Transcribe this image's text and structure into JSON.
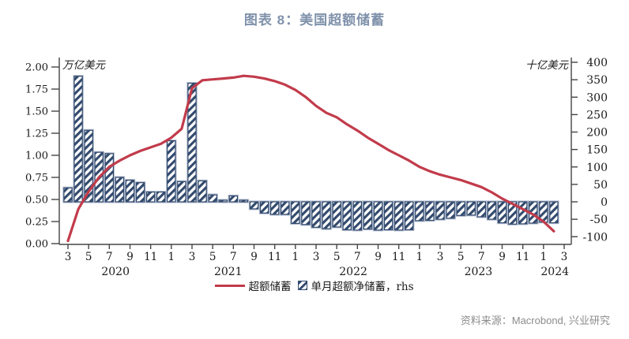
{
  "source": {
    "text": "资料来源：Macrobond, 兴业研究"
  },
  "colors": {
    "title": "#8092ab",
    "line": "#c23b4b",
    "bar_stripe": "#324a6d",
    "bar_edge_light": "#b3bdd0",
    "axis": "#454545",
    "tick_text": "#1a1a1a",
    "source_text": "#8c8c8c"
  },
  "chart_data": {
    "type": "combo-bar-line",
    "title": "图表 8：美国超额储蓄",
    "left_axis": {
      "unit": "万亿美元",
      "min": 0,
      "max": 2,
      "ticks": [
        {
          "v": 0.0,
          "label": "0.00"
        },
        {
          "v": 0.25,
          "label": "0.25"
        },
        {
          "v": 0.5,
          "label": "0.50"
        },
        {
          "v": 0.75,
          "label": "0.75"
        },
        {
          "v": 1.0,
          "label": "1.00"
        },
        {
          "v": 1.25,
          "label": "1.25"
        },
        {
          "v": 1.5,
          "label": "1.50"
        },
        {
          "v": 1.75,
          "label": "1.75"
        },
        {
          "v": 2.0,
          "label": "2.00"
        }
      ]
    },
    "right_axis": {
      "unit": "十亿美元",
      "min": -100,
      "max": 400,
      "ticks": [
        {
          "v": -100,
          "label": "-100"
        },
        {
          "v": -50,
          "label": "-50"
        },
        {
          "v": 0,
          "label": "0"
        },
        {
          "v": 50,
          "label": "50"
        },
        {
          "v": 100,
          "label": "100"
        },
        {
          "v": 150,
          "label": "150"
        },
        {
          "v": 200,
          "label": "200"
        },
        {
          "v": 250,
          "label": "250"
        },
        {
          "v": 300,
          "label": "300"
        },
        {
          "v": 350,
          "label": "350"
        },
        {
          "v": 400,
          "label": "400"
        }
      ]
    },
    "x_axis": {
      "ticks": [
        {
          "slot": 0,
          "label": "3"
        },
        {
          "slot": 2,
          "label": "5"
        },
        {
          "slot": 4,
          "label": "7"
        },
        {
          "slot": 6,
          "label": "9"
        },
        {
          "slot": 8,
          "label": "11"
        },
        {
          "slot": 10,
          "label": "1"
        },
        {
          "slot": 12,
          "label": "3"
        },
        {
          "slot": 14,
          "label": "5"
        },
        {
          "slot": 16,
          "label": "7"
        },
        {
          "slot": 18,
          "label": "9"
        },
        {
          "slot": 20,
          "label": "11"
        },
        {
          "slot": 22,
          "label": "1"
        },
        {
          "slot": 24,
          "label": "3"
        },
        {
          "slot": 26,
          "label": "5"
        },
        {
          "slot": 28,
          "label": "7"
        },
        {
          "slot": 30,
          "label": "9"
        },
        {
          "slot": 32,
          "label": "11"
        },
        {
          "slot": 34,
          "label": "1"
        },
        {
          "slot": 36,
          "label": "3"
        },
        {
          "slot": 38,
          "label": "5"
        },
        {
          "slot": 40,
          "label": "7"
        },
        {
          "slot": 42,
          "label": "9"
        },
        {
          "slot": 44,
          "label": "11"
        },
        {
          "slot": 46,
          "label": "1"
        },
        {
          "slot": 48,
          "label": "3"
        }
      ],
      "years": [
        {
          "label": "2020",
          "slot": 4.6
        },
        {
          "label": "2021",
          "slot": 15.5
        },
        {
          "label": "2022",
          "slot": 27.6
        },
        {
          "label": "2023",
          "slot": 39.7
        },
        {
          "label": "2024",
          "slot": 47.1
        }
      ]
    },
    "months": [
      "2020-03",
      "2020-04",
      "2020-05",
      "2020-06",
      "2020-07",
      "2020-08",
      "2020-09",
      "2020-10",
      "2020-11",
      "2020-12",
      "2021-01",
      "2021-02",
      "2021-03",
      "2021-04",
      "2021-05",
      "2021-06",
      "2021-07",
      "2021-08",
      "2021-09",
      "2021-10",
      "2021-11",
      "2021-12",
      "2022-01",
      "2022-02",
      "2022-03",
      "2022-04",
      "2022-05",
      "2022-06",
      "2022-07",
      "2022-08",
      "2022-09",
      "2022-10",
      "2022-11",
      "2022-12",
      "2023-01",
      "2023-02",
      "2023-03",
      "2023-04",
      "2023-05",
      "2023-06",
      "2023-07",
      "2023-08",
      "2023-09",
      "2023-10",
      "2023-11",
      "2023-12",
      "2024-01",
      "2024-02"
    ],
    "series": {
      "line": {
        "name": "超额储蓄",
        "axis": "left",
        "unit": "万亿美元",
        "values": [
          0.03,
          0.39,
          0.59,
          0.75,
          0.87,
          0.94,
          1.0,
          1.05,
          1.09,
          1.13,
          1.2,
          1.3,
          1.76,
          1.85,
          1.86,
          1.87,
          1.88,
          1.9,
          1.89,
          1.87,
          1.84,
          1.8,
          1.74,
          1.66,
          1.56,
          1.48,
          1.43,
          1.35,
          1.28,
          1.2,
          1.13,
          1.06,
          1.0,
          0.94,
          0.87,
          0.82,
          0.78,
          0.75,
          0.72,
          0.68,
          0.64,
          0.58,
          0.51,
          0.45,
          0.39,
          0.33,
          0.25,
          0.14
        ]
      },
      "bars": {
        "name": "单月超额净储蓄，rhs",
        "axis": "right",
        "unit": "十亿美元",
        "values": [
          40,
          360,
          205,
          142,
          138,
          70,
          62,
          55,
          28,
          28,
          175,
          58,
          340,
          60,
          20,
          3,
          17,
          3,
          -20,
          -32,
          -36,
          -36,
          -62,
          -65,
          -73,
          -77,
          -72,
          -80,
          -81,
          -78,
          -81,
          -80,
          -81,
          -80,
          -54,
          -53,
          -50,
          -47,
          -39,
          -38,
          -43,
          -50,
          -60,
          -64,
          -63,
          -61,
          -58,
          -60
        ]
      }
    }
  }
}
